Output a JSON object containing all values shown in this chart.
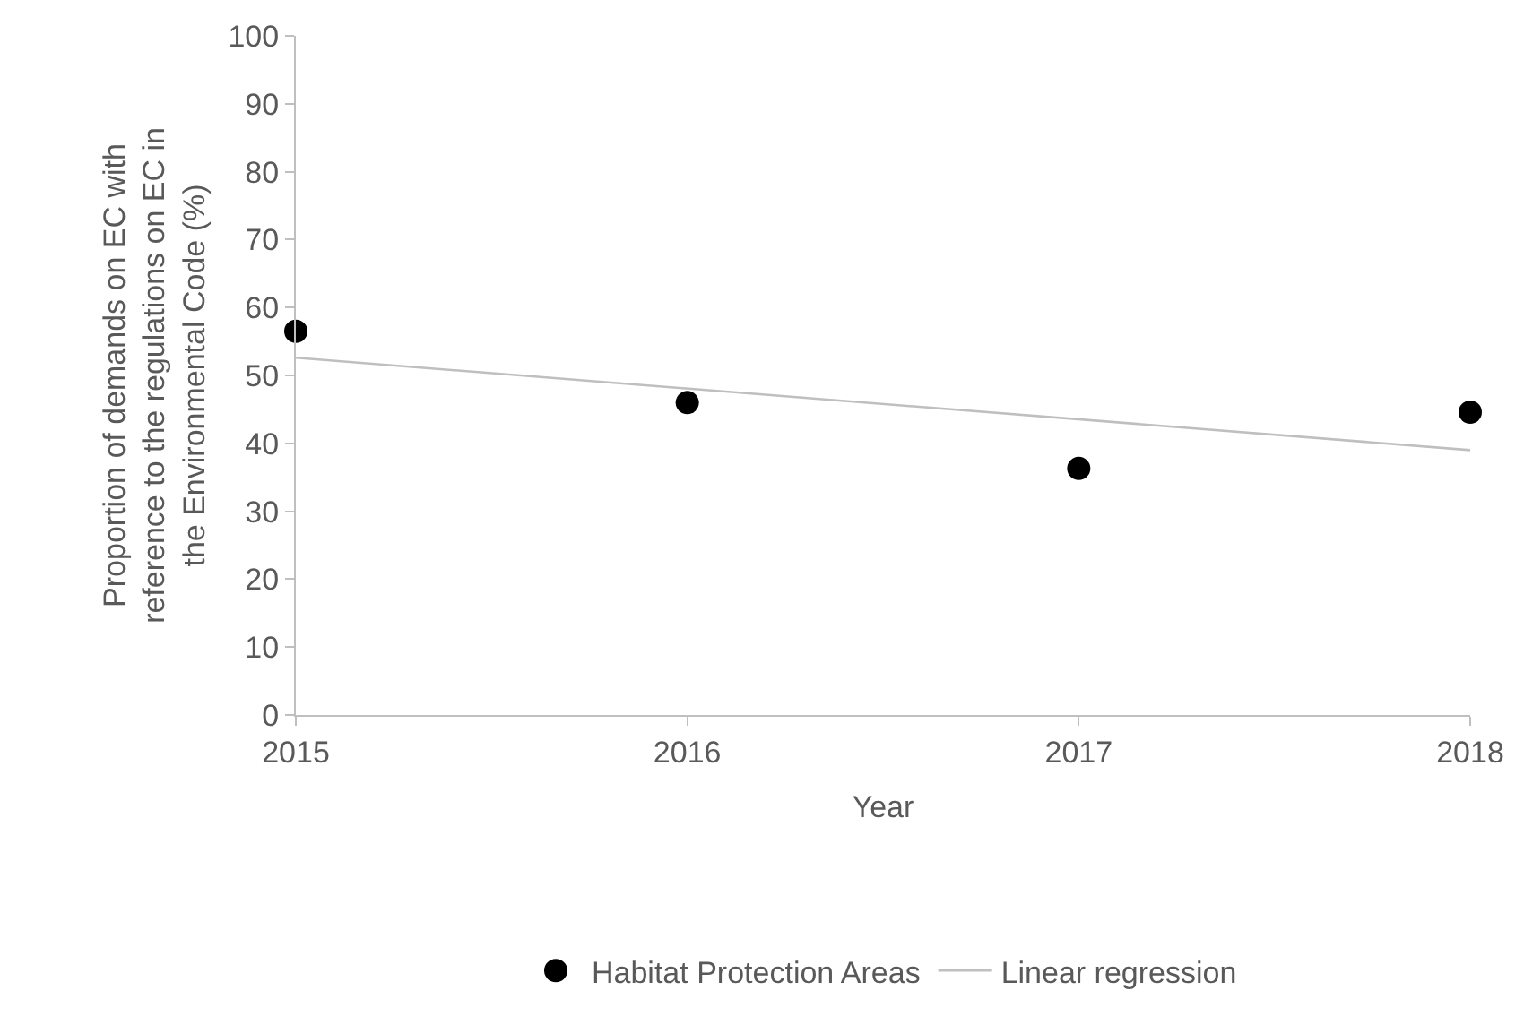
{
  "chart_data": {
    "type": "scatter",
    "xlabel": "Year",
    "ylabel": "Proportion of demands on EC with\nreference to the regulations on EC in\nthe Environmental Code (%)",
    "x": [
      2015,
      2016,
      2017,
      2018
    ],
    "series": [
      {
        "name": "Habitat Protection Areas",
        "color": "#000000",
        "marker": "circle",
        "values": [
          56.5,
          46.0,
          36.3,
          44.6
        ]
      },
      {
        "name": "Linear regression",
        "type": "line",
        "color": "#bfbfbf",
        "line_style": "solid",
        "x": [
          2015,
          2018
        ],
        "values": [
          52.6,
          39.0
        ]
      }
    ],
    "xlim": [
      2015,
      2018
    ],
    "xticks": [
      2015,
      2016,
      2017,
      2018
    ],
    "ylim": [
      0,
      100
    ],
    "yticks": [
      0,
      10,
      20,
      30,
      40,
      50,
      60,
      70,
      80,
      90,
      100
    ],
    "legend": "bottom"
  }
}
